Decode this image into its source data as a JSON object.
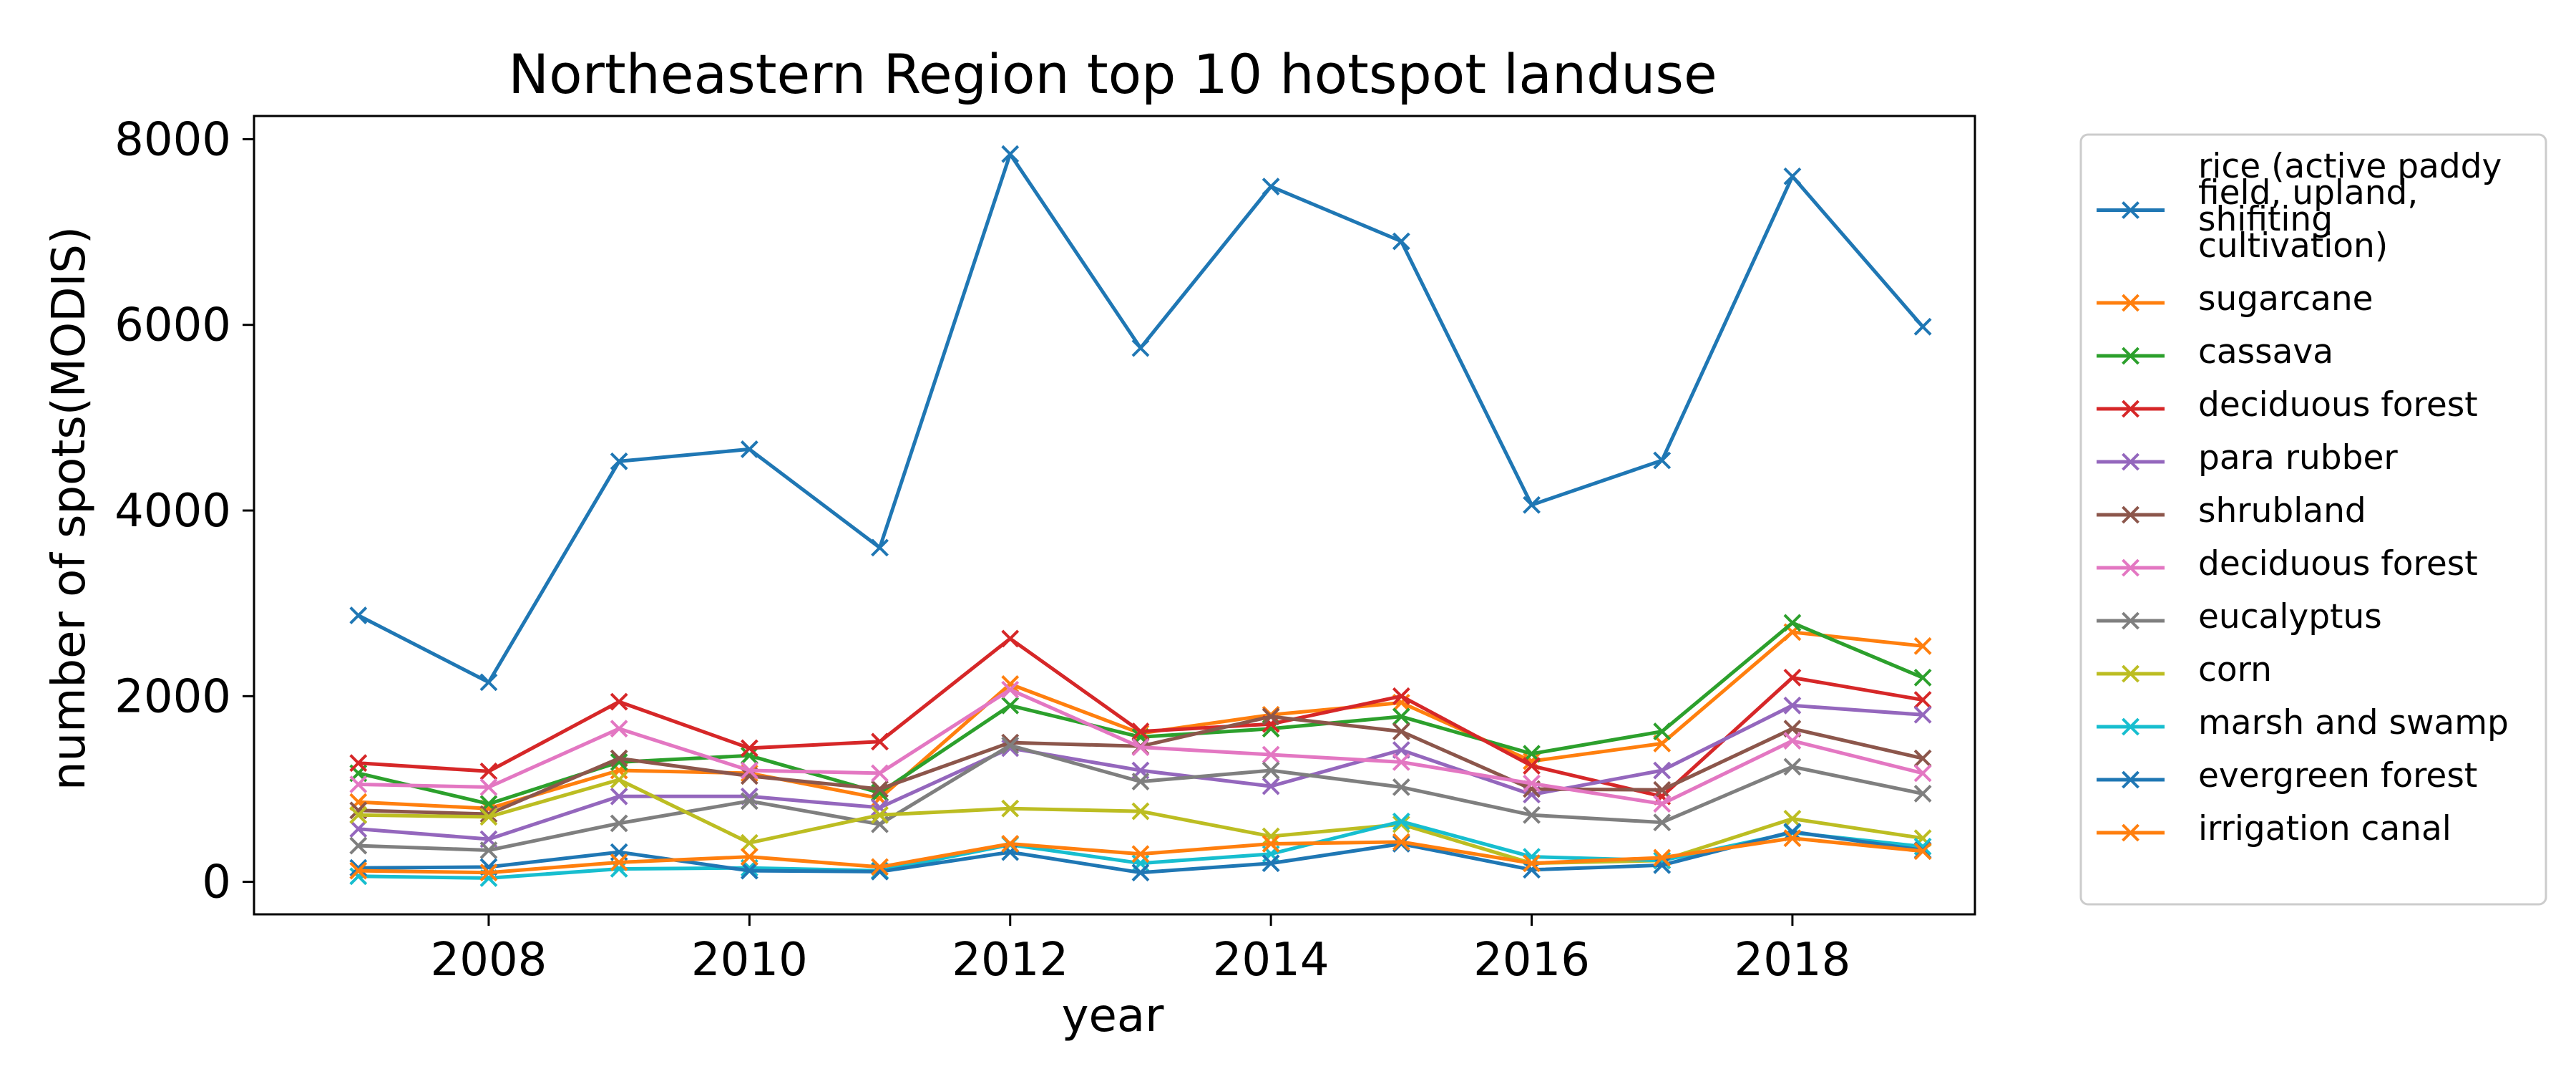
{
  "chart_data": {
    "type": "line",
    "title": "Northeastern Region top 10 hotspot landuse",
    "xlabel": "year",
    "ylabel": "number of spots(MODIS)",
    "xlim": [
      2006.2,
      2019.4
    ],
    "ylim": [
      -350,
      8250
    ],
    "x_ticks": [
      2008,
      2010,
      2012,
      2014,
      2016,
      2018
    ],
    "y_ticks": [
      0,
      2000,
      4000,
      6000,
      8000
    ],
    "grid": false,
    "legend_position": "outside-right",
    "marker": "x",
    "x": [
      2007,
      2008,
      2009,
      2010,
      2011,
      2012,
      2013,
      2014,
      2015,
      2016,
      2017,
      2018,
      2019
    ],
    "series": [
      {
        "name": "rice (active paddy field, upland, shifiting cultivation)",
        "legend_lines": [
          "rice (active paddy",
          "field, upland,",
          "shifiting",
          "cultivation)"
        ],
        "color": "#1f77b4",
        "values": [
          2870,
          2150,
          4530,
          4660,
          3600,
          7840,
          5750,
          7490,
          6900,
          4060,
          4540,
          7600,
          5980
        ]
      },
      {
        "name": "sugarcane",
        "color": "#ff7f0e",
        "values": [
          860,
          790,
          1200,
          1170,
          900,
          2130,
          1600,
          1800,
          1930,
          1300,
          1490,
          2690,
          2540
        ]
      },
      {
        "name": "cassava",
        "color": "#2ca02c",
        "values": [
          1170,
          840,
          1290,
          1360,
          960,
          1900,
          1560,
          1650,
          1780,
          1380,
          1620,
          2790,
          2200
        ]
      },
      {
        "name": "deciduous forest",
        "color": "#d62728",
        "values": [
          1280,
          1190,
          1940,
          1440,
          1510,
          2620,
          1620,
          1700,
          2000,
          1250,
          920,
          2200,
          1960
        ]
      },
      {
        "name": "para rubber",
        "color": "#9467bd",
        "values": [
          570,
          460,
          920,
          920,
          800,
          1440,
          1200,
          1030,
          1420,
          940,
          1200,
          1900,
          1800
        ]
      },
      {
        "name": "shrubland",
        "color": "#8c564b",
        "values": [
          770,
          730,
          1330,
          1140,
          1000,
          1500,
          1460,
          1780,
          1620,
          1000,
          990,
          1650,
          1330
        ]
      },
      {
        "name": "deciduous forest",
        "color": "#e377c2",
        "values": [
          1050,
          1020,
          1650,
          1200,
          1170,
          2070,
          1450,
          1370,
          1290,
          1060,
          840,
          1520,
          1170
        ]
      },
      {
        "name": "eucalyptus",
        "color": "#7f7f7f",
        "values": [
          390,
          340,
          630,
          870,
          620,
          1470,
          1080,
          1200,
          1020,
          720,
          640,
          1240,
          950
        ]
      },
      {
        "name": "corn",
        "color": "#bcbd22",
        "values": [
          720,
          700,
          1100,
          420,
          720,
          790,
          760,
          490,
          620,
          200,
          230,
          680,
          470
        ]
      },
      {
        "name": "marsh and swamp",
        "color": "#17becf",
        "values": [
          60,
          40,
          140,
          150,
          120,
          400,
          200,
          300,
          650,
          270,
          230,
          530,
          380
        ]
      },
      {
        "name": "evergreen forest",
        "color": "#1f77b4",
        "values": [
          150,
          160,
          320,
          120,
          110,
          320,
          100,
          200,
          410,
          130,
          180,
          540,
          340
        ]
      },
      {
        "name": "irrigation canal",
        "color": "#ff7f0e",
        "values": [
          120,
          100,
          210,
          270,
          160,
          410,
          300,
          410,
          430,
          200,
          260,
          470,
          330
        ]
      }
    ]
  }
}
